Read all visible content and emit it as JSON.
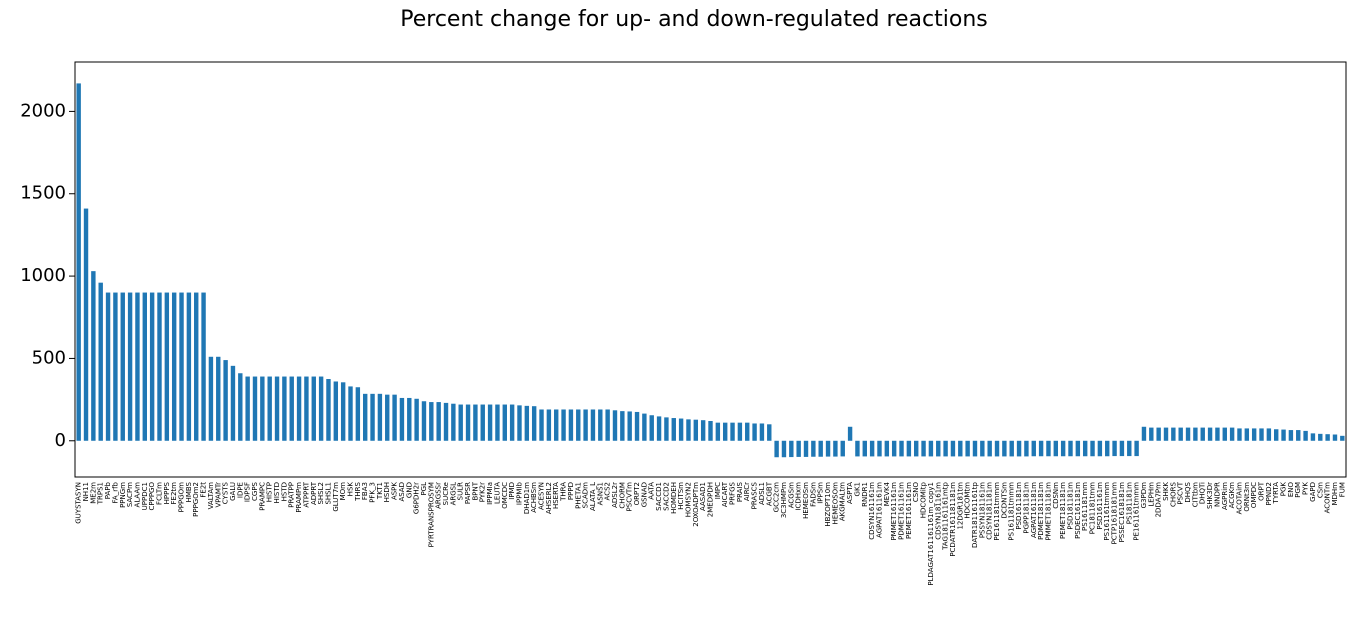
{
  "chart_data": {
    "type": "bar",
    "title": "Percent change for up- and down-regulated reactions",
    "color": "#1f77b4",
    "categories": [
      "GUYSTASYN",
      "NH11",
      "ME2m",
      "TRPS1",
      "PAPb",
      "FA_rfb",
      "PPNGm",
      "SACPm",
      "ALAAm",
      "UPPDC1",
      "CPPPGO",
      "FCLTm",
      "HPPPS",
      "FE2tm",
      "PPPGOm",
      "HMBS",
      "PPPGOm2",
      "FE2t",
      "VALTAm",
      "VPAMTr",
      "CYSTS",
      "GALU",
      "IDPE",
      "IDPSF",
      "CGPS",
      "PRAMPC",
      "HISTP",
      "HISTD",
      "HSTD",
      "PRATPP",
      "PRAMPm",
      "ATPPRT",
      "ADPRT",
      "SHSL2",
      "SHSL1",
      "GLUT7m",
      "MOm",
      "HSK",
      "THRS",
      "FBA3",
      "PFK_3",
      "TKT1",
      "HSDH",
      "ASPK",
      "ASAD",
      "GND",
      "G6PDH2r",
      "PGL",
      "PYRTRANSPROSYM",
      "ARGSSr",
      "SUCRe",
      "ARGSL",
      "SULR",
      "PAPSR",
      "BPNT",
      "PYK2r",
      "IPPMIa",
      "LEUTA",
      "OMCDC",
      "IPMD",
      "IPPMIb",
      "DHAD1m",
      "ACHBSm",
      "ACESYN",
      "AHSERL2",
      "HSERTA",
      "THRA",
      "PPPD",
      "PHETA1",
      "SCADm",
      "ALATA_L",
      "ASNS1",
      "ACS2",
      "ADSL2r",
      "CHORM",
      "PSCVTm",
      "ORPT2",
      "GSNAD",
      "AATA",
      "SACCD1",
      "SACCD2",
      "HOMDEH",
      "HCITSm",
      "HOMSYN2",
      "2OXOADPTm",
      "AASAD1",
      "2MEDPDH",
      "IMPC",
      "AICART",
      "PRFGS",
      "PRAIS",
      "AIRCr",
      "PRASCS",
      "ADSL1",
      "ACGBT",
      "GCC2cm",
      "3C3HMPm",
      "ACGSm",
      "ICDHxm",
      "HEMEOSm",
      "FADSm",
      "IPPSm",
      "HBZOPT10m",
      "HEMEOSOm",
      "AKGMALtm",
      "ASPTA",
      "GK1",
      "RNDR1",
      "CDSYN161161m",
      "AGPAT161161m",
      "MEVK4",
      "PMMET161161m",
      "PDMET161161m",
      "PEMET161161m",
      "CSNO",
      "HDCOMitp",
      "PLDAGAT161161161m_copy1",
      "CDSYN181161m",
      "TAG181161161mtp",
      "PCDATR161181181m",
      "12DGR181tm",
      "HDCOMtm",
      "DATR181161161tp",
      "PSSYN181161m",
      "CDSYN181181m",
      "PE161181tmmm",
      "DCDNTSm",
      "PS161181tmmm",
      "PSD161181m",
      "PGPP181181m",
      "AGPAT161181m",
      "PDMET181181m",
      "PMMET181181m",
      "CDSNm",
      "PEMET181181m",
      "PSD181181m",
      "PSDEC161181m",
      "PS161181mm",
      "PC181181tmm",
      "PSD161161m",
      "PS161161tmmm",
      "PCTP1618181mm",
      "PSSEC1618181m",
      "PS181181m",
      "PE161161tmmm",
      "G3PDm",
      "LEPHm",
      "2DDA7Pm",
      "SHKK",
      "CHORS",
      "PSCVT",
      "DHQS",
      "CITtbm",
      "DHQTi",
      "SHK3Dr",
      "NNDPR",
      "AGPRim",
      "ACGKm",
      "ACOTAim",
      "ORNt3m",
      "OMPDC",
      "ORPT",
      "PPND2",
      "TYRTA",
      "PGK",
      "ENO",
      "PGM",
      "PYK",
      "GAPD",
      "CSm",
      "ACONTm",
      "MDHm",
      "FUM"
    ],
    "values": [
      2170,
      1410,
      1030,
      960,
      900,
      900,
      900,
      900,
      900,
      900,
      900,
      900,
      900,
      900,
      900,
      900,
      900,
      900,
      510,
      510,
      490,
      455,
      410,
      390,
      390,
      390,
      390,
      390,
      390,
      390,
      390,
      390,
      390,
      390,
      375,
      360,
      355,
      330,
      325,
      285,
      285,
      285,
      280,
      280,
      260,
      260,
      255,
      240,
      235,
      235,
      230,
      225,
      220,
      220,
      220,
      220,
      220,
      220,
      220,
      220,
      215,
      212,
      210,
      190,
      190,
      190,
      190,
      190,
      190,
      190,
      190,
      190,
      190,
      185,
      180,
      178,
      175,
      165,
      155,
      148,
      142,
      138,
      135,
      130,
      128,
      125,
      120,
      110,
      110,
      110,
      110,
      110,
      105,
      105,
      100,
      -100,
      -100,
      -99,
      -98,
      -98,
      -97,
      -97,
      -96,
      -96,
      -95,
      85,
      -95,
      -95,
      -95,
      -95,
      -95,
      -95,
      -95,
      -95,
      -95,
      -95,
      -95,
      -95,
      -95,
      -95,
      -95,
      -95,
      -95,
      -95,
      -95,
      -95,
      -95,
      -95,
      -95,
      -95,
      -94,
      -94,
      -94,
      -94,
      -94,
      -94,
      -94,
      -94,
      -94,
      -94,
      -94,
      -93,
      -93,
      -93,
      -93,
      85,
      80,
      80,
      80,
      80,
      80,
      80,
      80,
      80,
      80,
      80,
      80,
      80,
      75,
      75,
      75,
      75,
      75,
      70,
      68,
      65,
      65,
      60,
      45,
      42,
      40,
      38,
      30
    ],
    "ylim": [
      -220,
      2300
    ],
    "yticks": [
      0,
      500,
      1000,
      1500,
      2000
    ]
  }
}
